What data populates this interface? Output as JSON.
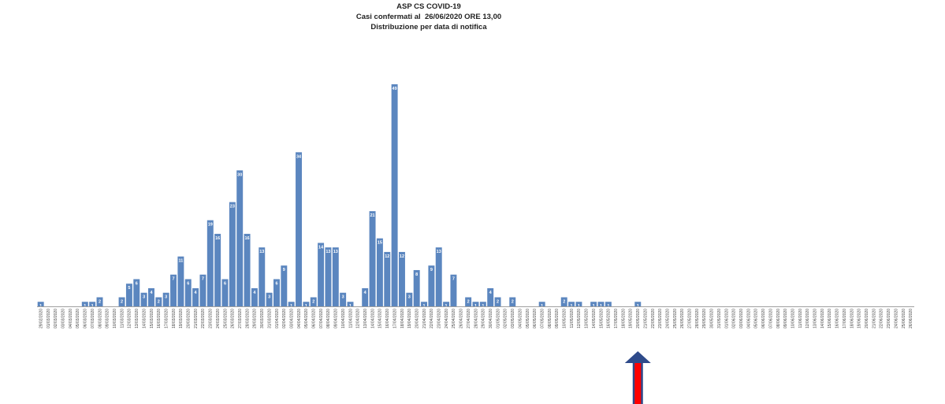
{
  "chart_data": {
    "type": "bar",
    "title": "ASP CS COVID-19",
    "subtitle": "Casi confermati al  26/06/2020 ORE 13,00",
    "subtitle2": "Distribuzione per data di notifica",
    "xlabel": "",
    "ylabel": "",
    "ylim": [
      0,
      50
    ],
    "grid": false,
    "categories": [
      "29/02/2020",
      "01/03/2020",
      "02/03/2020",
      "03/03/2020",
      "04/03/2020",
      "05/03/2020",
      "06/03/2020",
      "07/03/2020",
      "08/03/2020",
      "09/03/2020",
      "10/03/2020",
      "11/03/2020",
      "12/03/2020",
      "13/03/2020",
      "14/03/2020",
      "15/03/2020",
      "16/03/2020",
      "17/03/2020",
      "18/03/2020",
      "19/03/2020",
      "20/03/2020",
      "21/03/2020",
      "22/03/2020",
      "23/03/2020",
      "24/03/2020",
      "25/03/2020",
      "26/03/2020",
      "27/03/2020",
      "28/03/2020",
      "29/03/2020",
      "30/03/2020",
      "31/03/2020",
      "01/04/2020",
      "02/04/2020",
      "03/04/2020",
      "04/04/2020",
      "05/04/2020",
      "06/04/2020",
      "07/04/2020",
      "08/04/2020",
      "09/04/2020",
      "10/04/2020",
      "11/04/2020",
      "12/04/2020",
      "13/04/2020",
      "14/04/2020",
      "15/04/2020",
      "16/04/2020",
      "17/04/2020",
      "18/04/2020",
      "19/04/2020",
      "20/04/2020",
      "21/04/2020",
      "22/04/2020",
      "23/04/2020",
      "24/04/2020",
      "25/04/2020",
      "26/04/2020",
      "27/04/2020",
      "28/04/2020",
      "29/04/2020",
      "30/04/2020",
      "01/05/2020",
      "02/05/2020",
      "03/05/2020",
      "04/05/2020",
      "05/05/2020",
      "06/05/2020",
      "07/05/2020",
      "08/05/2020",
      "09/05/2020",
      "10/05/2020",
      "11/05/2020",
      "12/05/2020",
      "13/05/2020",
      "14/05/2020",
      "15/05/2020",
      "16/05/2020",
      "17/05/2020",
      "18/05/2020",
      "19/05/2020",
      "20/05/2020",
      "21/05/2020",
      "22/05/2020",
      "23/05/2020",
      "24/05/2020",
      "25/05/2020",
      "26/05/2020",
      "27/05/2020",
      "28/05/2020",
      "29/05/2020",
      "30/05/2020",
      "31/05/2020",
      "01/06/2020",
      "02/06/2020",
      "03/06/2020",
      "04/06/2020",
      "05/06/2020",
      "06/06/2020",
      "07/06/2020",
      "08/06/2020",
      "09/06/2020",
      "10/06/2020",
      "11/06/2020",
      "12/06/2020",
      "13/06/2020",
      "14/06/2020",
      "15/06/2020",
      "16/06/2020",
      "17/06/2020",
      "18/06/2020",
      "19/06/2020",
      "20/06/2020",
      "21/06/2020",
      "22/06/2020",
      "23/06/2020",
      "24/06/2020",
      "25/06/2020",
      "26/06/2020"
    ],
    "values": [
      1,
      0,
      0,
      0,
      0,
      0,
      1,
      1,
      2,
      0,
      0,
      2,
      5,
      6,
      3,
      4,
      2,
      3,
      7,
      11,
      6,
      4,
      7,
      19,
      16,
      6,
      23,
      30,
      16,
      4,
      13,
      3,
      6,
      9,
      1,
      34,
      1,
      2,
      14,
      13,
      13,
      3,
      1,
      0,
      4,
      21,
      15,
      12,
      49,
      12,
      3,
      8,
      1,
      9,
      13,
      1,
      7,
      0,
      2,
      1,
      1,
      4,
      2,
      0,
      2,
      0,
      0,
      0,
      1,
      0,
      0,
      2,
      1,
      1,
      0,
      1,
      1,
      1,
      0,
      0,
      0,
      1,
      0,
      0,
      0,
      0,
      0,
      0,
      0,
      0,
      0,
      0,
      0,
      0,
      0,
      0,
      0,
      0,
      0,
      0,
      0,
      0,
      0,
      0,
      0,
      0,
      0,
      0,
      0,
      0,
      0,
      0,
      0,
      0,
      0,
      0,
      0,
      0,
      0
    ]
  },
  "annotation": {
    "arrow_color_fill": "#ff0000",
    "arrow_color_outline": "#2e4a8a",
    "arrow_points_to": "20/05/2020"
  },
  "colors": {
    "bar": "#5b86bf",
    "axis": "#7f7f7f",
    "label": "#ffffff"
  }
}
